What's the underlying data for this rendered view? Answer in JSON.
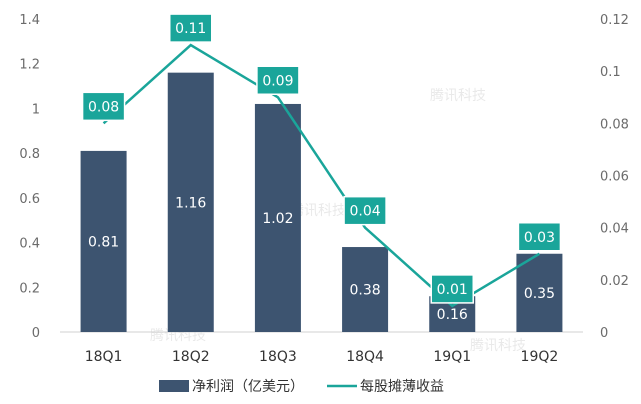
{
  "chart_data": {
    "type": "bar",
    "categories": [
      "18Q1",
      "18Q2",
      "18Q3",
      "18Q4",
      "19Q1",
      "19Q2"
    ],
    "series": [
      {
        "name": "净利润（亿美元）",
        "type": "bar",
        "axis": "left",
        "values": [
          0.81,
          1.16,
          1.02,
          0.38,
          0.16,
          0.35
        ],
        "labels": [
          "0.81",
          "1.16",
          "1.02",
          "0.38",
          "0.16",
          "0.35"
        ]
      },
      {
        "name": "每股摊薄收益",
        "type": "line",
        "axis": "right",
        "values": [
          0.08,
          0.11,
          0.09,
          0.04,
          0.01,
          0.03
        ],
        "labels": [
          "0.08",
          "0.11",
          "0.09",
          "0.04",
          "0.01",
          "0.03"
        ]
      }
    ],
    "y_left": {
      "min": 0,
      "max": 1.4,
      "ticks": [
        "0",
        "0.2",
        "0.4",
        "0.6",
        "0.8",
        "1",
        "1.2",
        "1.4"
      ]
    },
    "y_right": {
      "min": 0,
      "max": 0.12,
      "ticks": [
        "0",
        "0.02",
        "0.04",
        "0.06",
        "0.08",
        "0.1",
        "0.12"
      ]
    },
    "grid": false,
    "legend_position": "bottom",
    "title": "",
    "xlabel": "",
    "ylabel": ""
  },
  "colors": {
    "bar": "#3d5470",
    "line": "#1aa59a",
    "label_box": "#1aa59a"
  },
  "watermark": "腾讯科技"
}
